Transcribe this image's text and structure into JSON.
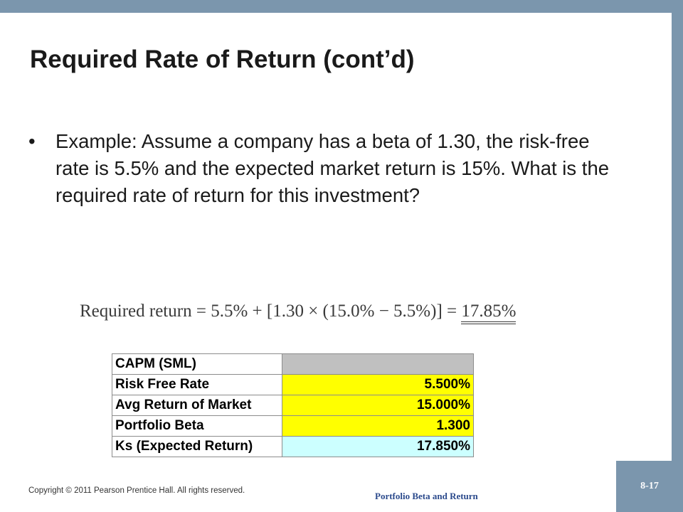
{
  "slide": {
    "title": "Required Rate of Return (cont’d)",
    "bullet_symbol": "•",
    "bullet_text": "Example:  Assume a company has a beta of 1.30, the risk-free rate is 5.5% and the expected market return is 15%. What is the required rate of return for this investment?",
    "formula": {
      "lhs": "Required return",
      "expression": " = 5.5% + [1.30 × (15.0% − 5.5%)] = ",
      "result": "17.85%"
    },
    "table": {
      "header_label": "CAPM (SML)",
      "header_value": "",
      "rows": [
        {
          "label": "Risk Free Rate",
          "value": "5.500%"
        },
        {
          "label": "Avg Return of Market",
          "value": "15.000%"
        },
        {
          "label": "Portfolio Beta",
          "value": "1.300"
        },
        {
          "label": "Ks (Expected Return)",
          "value": "17.850%"
        }
      ]
    },
    "copyright": "Copyright © 2011 Pearson Prentice Hall.  All rights reserved.",
    "footer_title": "Portfolio Beta and Return",
    "slide_number": "8-17"
  },
  "colors": {
    "frame": "#7b96ad",
    "header_cell": "#c0c0c0",
    "input_cell": "#ffff00",
    "output_cell": "#ccffff",
    "footer_title": "#2b4a8c"
  }
}
